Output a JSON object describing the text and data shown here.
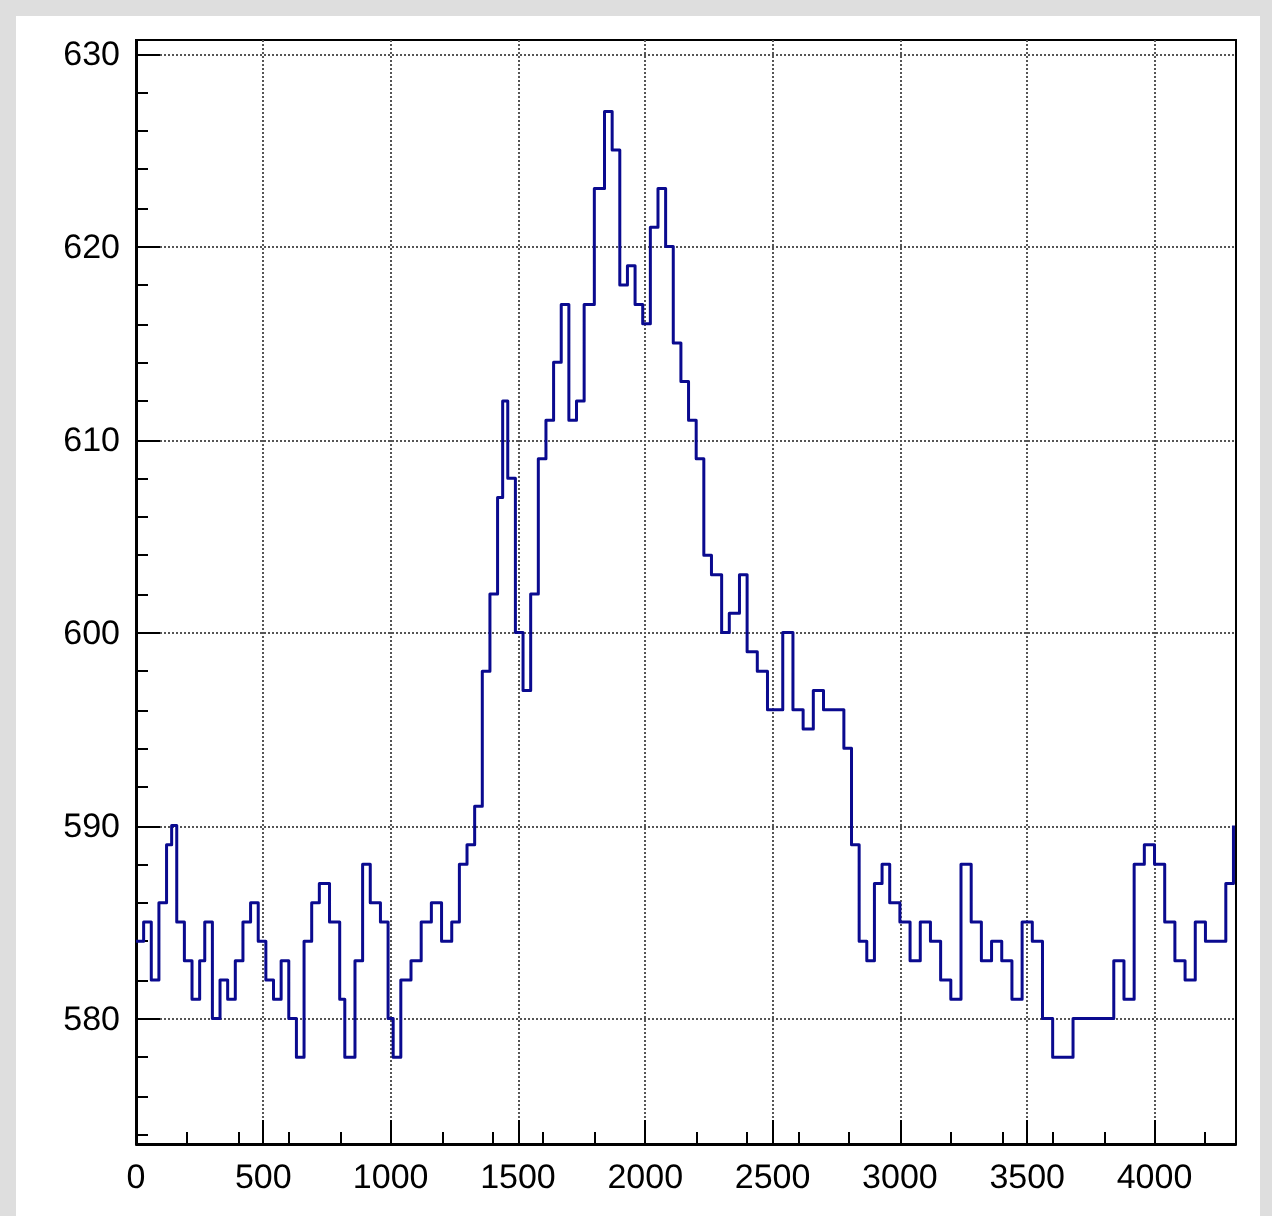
{
  "chart_data": {
    "type": "step",
    "xlim": [
      0,
      4320
    ],
    "xticks": [
      0,
      500,
      1000,
      1500,
      2000,
      2500,
      3000,
      3500,
      4000
    ],
    "ylim": [
      573.5,
      630.7
    ],
    "yticks": [
      580,
      590,
      600,
      610,
      620,
      630
    ],
    "grid": true,
    "series": [
      {
        "color": "#0a0a8f",
        "x": [
          0,
          30,
          60,
          90,
          120,
          140,
          160,
          190,
          220,
          250,
          270,
          300,
          330,
          360,
          390,
          420,
          450,
          480,
          510,
          540,
          570,
          600,
          630,
          660,
          690,
          720,
          760,
          800,
          820,
          860,
          890,
          920,
          960,
          990,
          1010,
          1040,
          1080,
          1120,
          1160,
          1200,
          1240,
          1270,
          1300,
          1330,
          1360,
          1390,
          1420,
          1440,
          1460,
          1490,
          1520,
          1550,
          1580,
          1610,
          1640,
          1670,
          1700,
          1730,
          1760,
          1800,
          1840,
          1870,
          1900,
          1930,
          1960,
          1990,
          2020,
          2050,
          2080,
          2110,
          2140,
          2170,
          2200,
          2230,
          2260,
          2300,
          2330,
          2370,
          2400,
          2440,
          2480,
          2510,
          2540,
          2580,
          2620,
          2660,
          2700,
          2740,
          2780,
          2810,
          2840,
          2870,
          2900,
          2930,
          2960,
          3000,
          3040,
          3080,
          3120,
          3160,
          3200,
          3240,
          3280,
          3320,
          3360,
          3400,
          3440,
          3480,
          3520,
          3560,
          3600,
          3640,
          3680,
          3720,
          3760,
          3800,
          3840,
          3880,
          3920,
          3960,
          4000,
          4040,
          4080,
          4120,
          4160,
          4200,
          4240,
          4280,
          4310
        ],
        "values": [
          584,
          585,
          582,
          586,
          589,
          590,
          585,
          583,
          581,
          583,
          585,
          580,
          582,
          581,
          583,
          585,
          586,
          584,
          582,
          581,
          583,
          580,
          578,
          584,
          586,
          587,
          585,
          581,
          578,
          583,
          588,
          586,
          585,
          580,
          578,
          582,
          583,
          585,
          586,
          584,
          585,
          588,
          589,
          591,
          598,
          602,
          607,
          612,
          608,
          600,
          597,
          602,
          609,
          611,
          614,
          617,
          611,
          612,
          617,
          623,
          627,
          625,
          618,
          619,
          617,
          616,
          621,
          623,
          620,
          615,
          613,
          611,
          609,
          604,
          603,
          600,
          601,
          603,
          599,
          598,
          596,
          596,
          600,
          596,
          595,
          597,
          596,
          596,
          594,
          589,
          584,
          583,
          587,
          588,
          586,
          585,
          583,
          585,
          584,
          582,
          581,
          588,
          585,
          583,
          584,
          583,
          581,
          585,
          584,
          580,
          578,
          578,
          580,
          580,
          580,
          580,
          583,
          581,
          588,
          589,
          588,
          585,
          583,
          582,
          585,
          584,
          584,
          587,
          590
        ]
      }
    ]
  }
}
